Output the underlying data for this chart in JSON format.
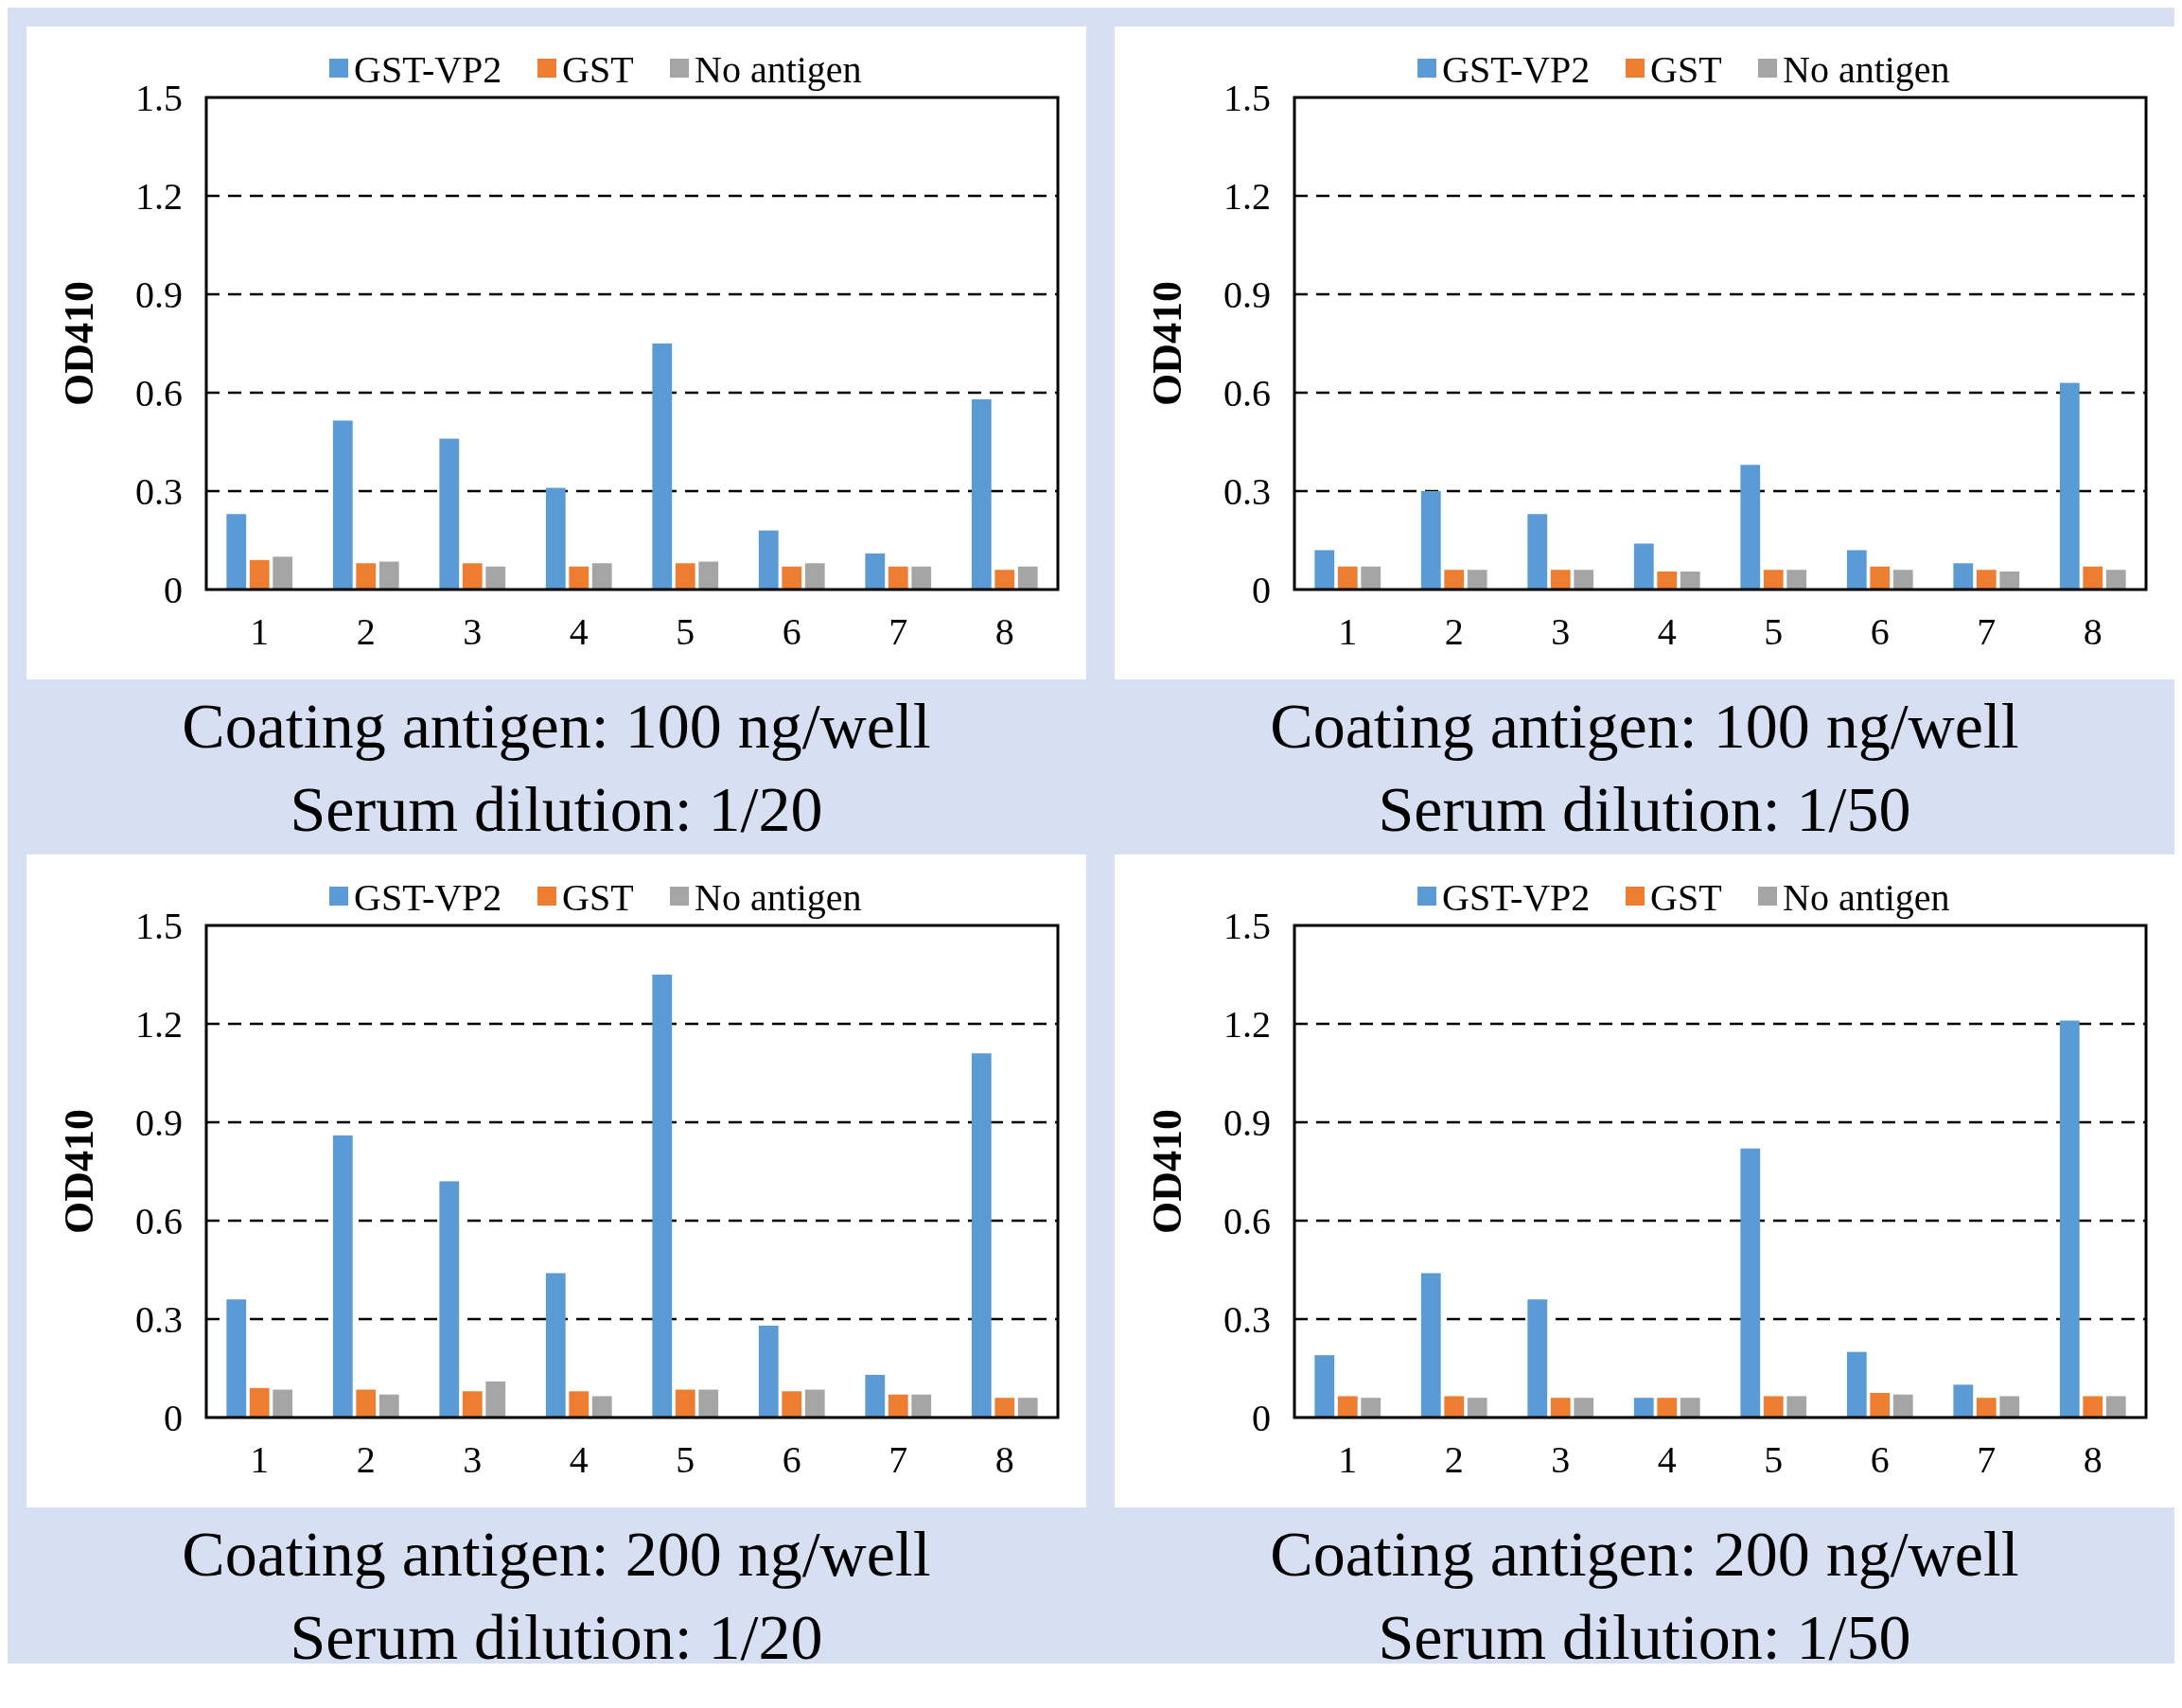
{
  "chart_data": [
    {
      "type": "bar",
      "title": "Coating antigen: 100 ng/well",
      "subtitle": "Serum dilution: 1/20",
      "ylabel": "OD410",
      "categories": [
        "1",
        "2",
        "3",
        "4",
        "5",
        "6",
        "7",
        "8"
      ],
      "series": [
        {
          "name": "GST-VP2",
          "color": "#5b9bd5",
          "values": [
            0.23,
            0.515,
            0.46,
            0.31,
            0.75,
            0.18,
            0.11,
            0.58
          ]
        },
        {
          "name": "GST",
          "color": "#ed7d31",
          "values": [
            0.09,
            0.08,
            0.08,
            0.07,
            0.08,
            0.07,
            0.07,
            0.06
          ]
        },
        {
          "name": "No antigen",
          "color": "#a5a5a5",
          "values": [
            0.1,
            0.085,
            0.07,
            0.08,
            0.085,
            0.08,
            0.07,
            0.07
          ]
        }
      ],
      "ylim": [
        0,
        1.5
      ],
      "yticks": [
        0,
        0.3,
        0.6,
        0.9,
        1.2,
        1.5
      ],
      "grid": "y",
      "legend": "top"
    },
    {
      "type": "bar",
      "title": "Coating antigen: 100 ng/well",
      "subtitle": "Serum dilution: 1/50",
      "ylabel": "OD410",
      "categories": [
        "1",
        "2",
        "3",
        "4",
        "5",
        "6",
        "7",
        "8"
      ],
      "series": [
        {
          "name": "GST-VP2",
          "color": "#5b9bd5",
          "values": [
            0.12,
            0.3,
            0.23,
            0.14,
            0.38,
            0.12,
            0.08,
            0.63
          ]
        },
        {
          "name": "GST",
          "color": "#ed7d31",
          "values": [
            0.07,
            0.06,
            0.06,
            0.055,
            0.06,
            0.07,
            0.06,
            0.07
          ]
        },
        {
          "name": "No antigen",
          "color": "#a5a5a5",
          "values": [
            0.07,
            0.06,
            0.06,
            0.055,
            0.06,
            0.06,
            0.055,
            0.06
          ]
        }
      ],
      "ylim": [
        0,
        1.5
      ],
      "yticks": [
        0,
        0.3,
        0.6,
        0.9,
        1.2,
        1.5
      ],
      "grid": "y",
      "legend": "top"
    },
    {
      "type": "bar",
      "title": "Coating antigen: 200 ng/well",
      "subtitle": "Serum dilution: 1/20",
      "ylabel": "OD410",
      "categories": [
        "1",
        "2",
        "3",
        "4",
        "5",
        "6",
        "7",
        "8"
      ],
      "series": [
        {
          "name": "GST-VP2",
          "color": "#5b9bd5",
          "values": [
            0.36,
            0.86,
            0.72,
            0.44,
            1.35,
            0.28,
            0.13,
            1.11
          ]
        },
        {
          "name": "GST",
          "color": "#ed7d31",
          "values": [
            0.09,
            0.085,
            0.08,
            0.08,
            0.085,
            0.08,
            0.07,
            0.06
          ]
        },
        {
          "name": "No antigen",
          "color": "#a5a5a5",
          "values": [
            0.085,
            0.07,
            0.11,
            0.065,
            0.085,
            0.085,
            0.07,
            0.06
          ]
        }
      ],
      "ylim": [
        0,
        1.5
      ],
      "yticks": [
        0,
        0.3,
        0.6,
        0.9,
        1.2,
        1.5
      ],
      "grid": "y",
      "legend": "top"
    },
    {
      "type": "bar",
      "title": "Coating antigen: 200 ng/well",
      "subtitle": "Serum dilution: 1/50",
      "ylabel": "OD410",
      "categories": [
        "1",
        "2",
        "3",
        "4",
        "5",
        "6",
        "7",
        "8"
      ],
      "series": [
        {
          "name": "GST-VP2",
          "color": "#5b9bd5",
          "values": [
            0.19,
            0.44,
            0.36,
            0.06,
            0.82,
            0.2,
            0.1,
            1.21
          ]
        },
        {
          "name": "GST",
          "color": "#ed7d31",
          "values": [
            0.065,
            0.065,
            0.06,
            0.06,
            0.065,
            0.075,
            0.06,
            0.065
          ]
        },
        {
          "name": "No antigen",
          "color": "#a5a5a5",
          "values": [
            0.06,
            0.06,
            0.06,
            0.06,
            0.065,
            0.07,
            0.065,
            0.065
          ]
        }
      ],
      "ylim": [
        0,
        1.5
      ],
      "yticks": [
        0,
        0.3,
        0.6,
        0.9,
        1.2,
        1.5
      ],
      "grid": "y",
      "legend": "top"
    }
  ]
}
